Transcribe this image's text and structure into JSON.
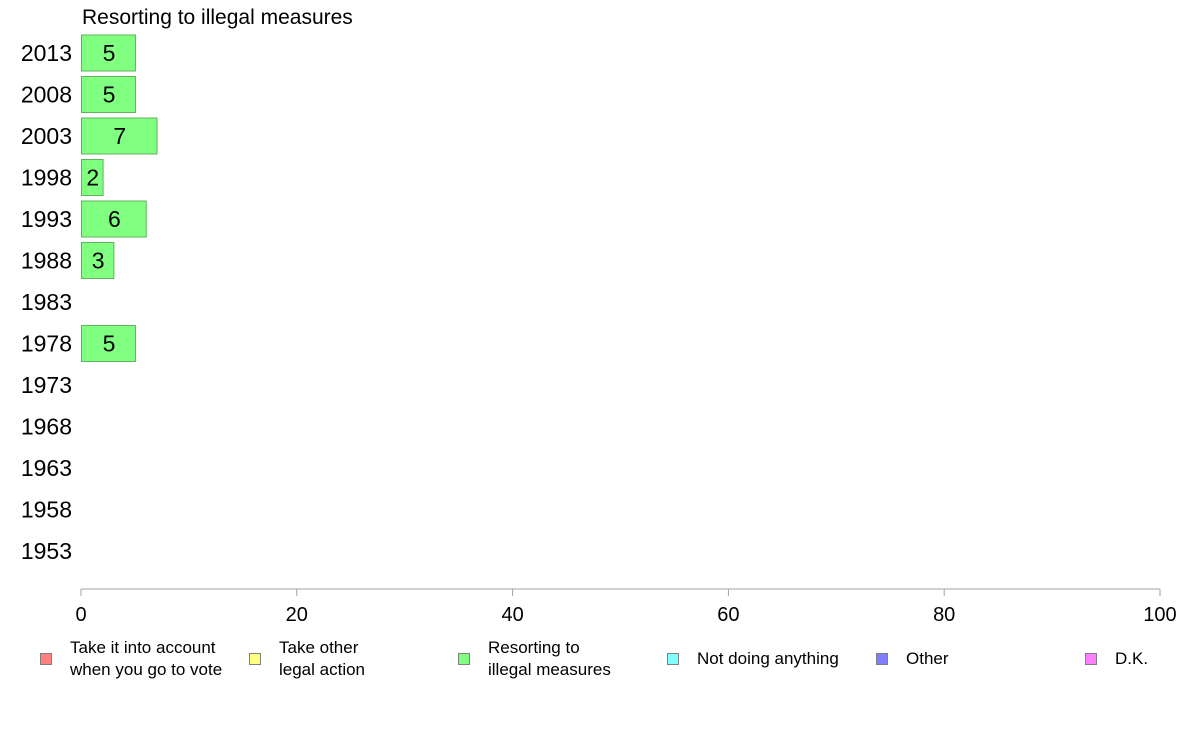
{
  "chart_data": {
    "type": "bar",
    "orientation": "horizontal",
    "title": "Resorting to illegal measures",
    "categories": [
      "2013",
      "2008",
      "2003",
      "1998",
      "1993",
      "1988",
      "1983",
      "1978",
      "1973",
      "1968",
      "1963",
      "1958",
      "1953"
    ],
    "series": [
      {
        "name": "Resorting to illegal measures",
        "color": "#80ff80",
        "values": [
          5,
          5,
          7,
          2,
          6,
          3,
          null,
          5,
          null,
          null,
          null,
          null,
          null
        ],
        "value_labels": [
          "5",
          "5",
          "7",
          "2",
          "6",
          "3",
          "",
          "5",
          "",
          "",
          "",
          "",
          ""
        ]
      }
    ],
    "xlim": [
      0,
      100
    ],
    "xticks": [
      "0",
      "20",
      "40",
      "60",
      "80",
      "100"
    ],
    "grid": false,
    "legend_position": "bottom",
    "legend": [
      {
        "label": "Take it into account\nwhen you go to vote",
        "color": "#ff8080"
      },
      {
        "label": "Take other\nlegal action",
        "color": "#ffff80"
      },
      {
        "label": "Resorting to\nillegal measures",
        "color": "#80ff80"
      },
      {
        "label": "Not doing anything",
        "color": "#80ffff"
      },
      {
        "label": "Other",
        "color": "#8080ff"
      },
      {
        "label": "D.K.",
        "color": "#ff80ff"
      }
    ]
  }
}
